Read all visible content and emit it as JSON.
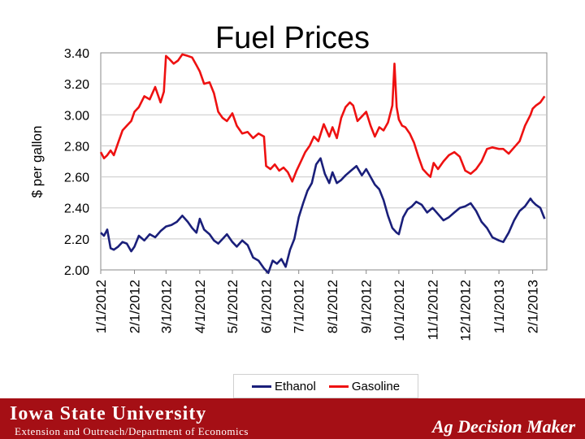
{
  "slide": {
    "footer_university": "Iowa State University",
    "footer_subtitle": "Extension and Outreach/Department of Economics",
    "footer_brand": "Ag Decision Maker"
  },
  "colors": {
    "ethanol": "#1a1f7a",
    "gasoline": "#ee1111",
    "footer": "#a50f15"
  },
  "chart_data": {
    "type": "line",
    "title": "Fuel Prices",
    "ylabel": "$ per gallon",
    "xlabel": "",
    "ylim": [
      2.0,
      3.4
    ],
    "yticks": [
      "3.40",
      "3.20",
      "3.00",
      "2.80",
      "2.60",
      "2.40",
      "2.20",
      "2.00"
    ],
    "ytick_values": [
      3.4,
      3.2,
      3.0,
      2.8,
      2.6,
      2.4,
      2.2,
      2.0
    ],
    "xticks": [
      "1/1/2012",
      "2/1/2012",
      "3/1/2012",
      "4/1/2012",
      "5/1/2012",
      "6/1/2012",
      "7/1/2012",
      "8/1/2012",
      "9/1/2012",
      "10/1/2012",
      "11/1/2012",
      "12/1/2012",
      "1/1/2013",
      "2/1/2013"
    ],
    "xtick_days": [
      0,
      31,
      60,
      91,
      121,
      152,
      182,
      213,
      244,
      274,
      305,
      335,
      366,
      397
    ],
    "xlim_days": [
      0,
      410
    ],
    "legend": "bottom",
    "series": [
      {
        "name": "Ethanol",
        "days": [
          0,
          3,
          6,
          9,
          12,
          16,
          20,
          24,
          28,
          31,
          35,
          40,
          45,
          50,
          55,
          60,
          65,
          70,
          75,
          80,
          84,
          88,
          91,
          95,
          100,
          104,
          108,
          112,
          116,
          121,
          125,
          130,
          135,
          140,
          145,
          150,
          154,
          158,
          162,
          166,
          170,
          174,
          178,
          182,
          186,
          190,
          194,
          198,
          202,
          206,
          210,
          213,
          217,
          221,
          225,
          230,
          235,
          240,
          244,
          248,
          252,
          256,
          260,
          264,
          268,
          272,
          274,
          278,
          282,
          286,
          290,
          295,
          300,
          305,
          310,
          315,
          320,
          325,
          330,
          335,
          340,
          345,
          350,
          355,
          360,
          366,
          370,
          375,
          380,
          385,
          390,
          395,
          397,
          400,
          404,
          408
        ],
        "values": [
          2.24,
          2.22,
          2.26,
          2.14,
          2.13,
          2.15,
          2.18,
          2.17,
          2.12,
          2.15,
          2.22,
          2.19,
          2.23,
          2.21,
          2.25,
          2.28,
          2.29,
          2.31,
          2.35,
          2.31,
          2.27,
          2.24,
          2.33,
          2.26,
          2.23,
          2.19,
          2.17,
          2.2,
          2.23,
          2.18,
          2.15,
          2.19,
          2.16,
          2.08,
          2.06,
          2.01,
          1.98,
          2.06,
          2.04,
          2.07,
          2.02,
          2.13,
          2.2,
          2.34,
          2.43,
          2.51,
          2.56,
          2.68,
          2.72,
          2.62,
          2.56,
          2.63,
          2.56,
          2.58,
          2.61,
          2.64,
          2.67,
          2.61,
          2.65,
          2.6,
          2.55,
          2.52,
          2.45,
          2.35,
          2.27,
          2.24,
          2.23,
          2.34,
          2.39,
          2.41,
          2.44,
          2.42,
          2.37,
          2.4,
          2.36,
          2.32,
          2.34,
          2.37,
          2.4,
          2.41,
          2.43,
          2.38,
          2.31,
          2.27,
          2.21,
          2.19,
          2.18,
          2.24,
          2.32,
          2.38,
          2.41,
          2.46,
          2.44,
          2.42,
          2.4,
          2.33
        ]
      },
      {
        "name": "Gasoline",
        "days": [
          0,
          3,
          6,
          9,
          12,
          16,
          20,
          24,
          28,
          31,
          35,
          40,
          45,
          50,
          55,
          58,
          60,
          63,
          67,
          71,
          75,
          80,
          84,
          88,
          91,
          95,
          100,
          104,
          108,
          112,
          116,
          121,
          125,
          130,
          135,
          140,
          145,
          150,
          152,
          156,
          160,
          164,
          168,
          172,
          176,
          180,
          184,
          188,
          192,
          196,
          200,
          205,
          210,
          213,
          217,
          221,
          225,
          229,
          232,
          236,
          240,
          244,
          248,
          252,
          256,
          260,
          264,
          268,
          270,
          272,
          274,
          277,
          280,
          284,
          288,
          292,
          296,
          300,
          303,
          306,
          310,
          315,
          320,
          325,
          330,
          335,
          340,
          345,
          350,
          355,
          360,
          366,
          370,
          375,
          380,
          385,
          390,
          395,
          397,
          400,
          404,
          408
        ],
        "values": [
          2.76,
          2.72,
          2.74,
          2.77,
          2.74,
          2.82,
          2.9,
          2.93,
          2.96,
          3.02,
          3.05,
          3.12,
          3.1,
          3.18,
          3.08,
          3.15,
          3.38,
          3.36,
          3.33,
          3.35,
          3.39,
          3.38,
          3.37,
          3.32,
          3.28,
          3.2,
          3.21,
          3.14,
          3.02,
          2.98,
          2.96,
          3.01,
          2.93,
          2.88,
          2.89,
          2.85,
          2.88,
          2.86,
          2.67,
          2.65,
          2.68,
          2.64,
          2.66,
          2.63,
          2.57,
          2.64,
          2.7,
          2.76,
          2.8,
          2.86,
          2.83,
          2.94,
          2.86,
          2.92,
          2.85,
          2.98,
          3.05,
          3.08,
          3.06,
          2.96,
          2.99,
          3.02,
          2.93,
          2.86,
          2.92,
          2.9,
          2.95,
          3.06,
          3.33,
          3.05,
          2.97,
          2.93,
          2.92,
          2.88,
          2.82,
          2.73,
          2.65,
          2.62,
          2.6,
          2.69,
          2.65,
          2.7,
          2.74,
          2.76,
          2.73,
          2.64,
          2.62,
          2.65,
          2.7,
          2.78,
          2.79,
          2.78,
          2.78,
          2.75,
          2.79,
          2.83,
          2.93,
          3.0,
          3.04,
          3.06,
          3.08,
          3.12
        ]
      }
    ]
  }
}
